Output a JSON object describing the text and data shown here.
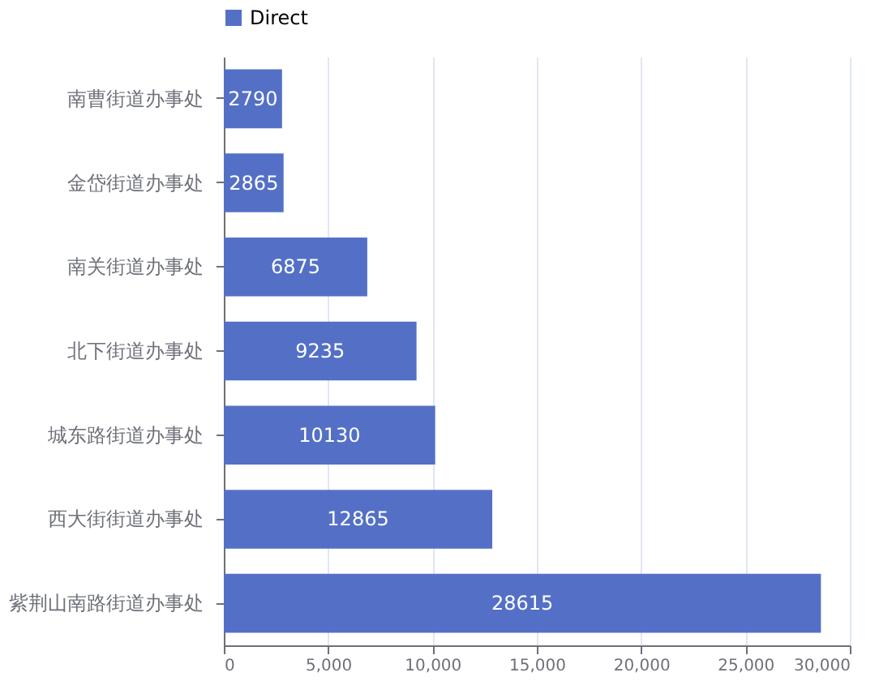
{
  "chart_data": {
    "type": "bar",
    "orientation": "horizontal",
    "categories": [
      "南曹街道办事处",
      "金岱街道办事处",
      "南关街道办事处",
      "北下街道办事处",
      "城东路街道办事处",
      "西大街街道办事处",
      "紫荆山南路街道办事处"
    ],
    "series": [
      {
        "name": "Direct",
        "color": "#5470c6",
        "values": [
          2790,
          2865,
          6875,
          9235,
          10130,
          12865,
          28615
        ]
      }
    ],
    "xlim": [
      0,
      30000
    ],
    "xticks": [
      0,
      {
        "value": 5000,
        "label": "5,000"
      },
      {
        "value": 10000,
        "label": "10,000"
      },
      {
        "value": 15000,
        "label": "15,000"
      },
      {
        "value": 20000,
        "label": "20,000"
      },
      {
        "value": 25000,
        "label": "25,000"
      },
      {
        "value": 30000,
        "label": "30,000"
      }
    ],
    "grid": "x",
    "legend": "top",
    "data_labels": true
  }
}
